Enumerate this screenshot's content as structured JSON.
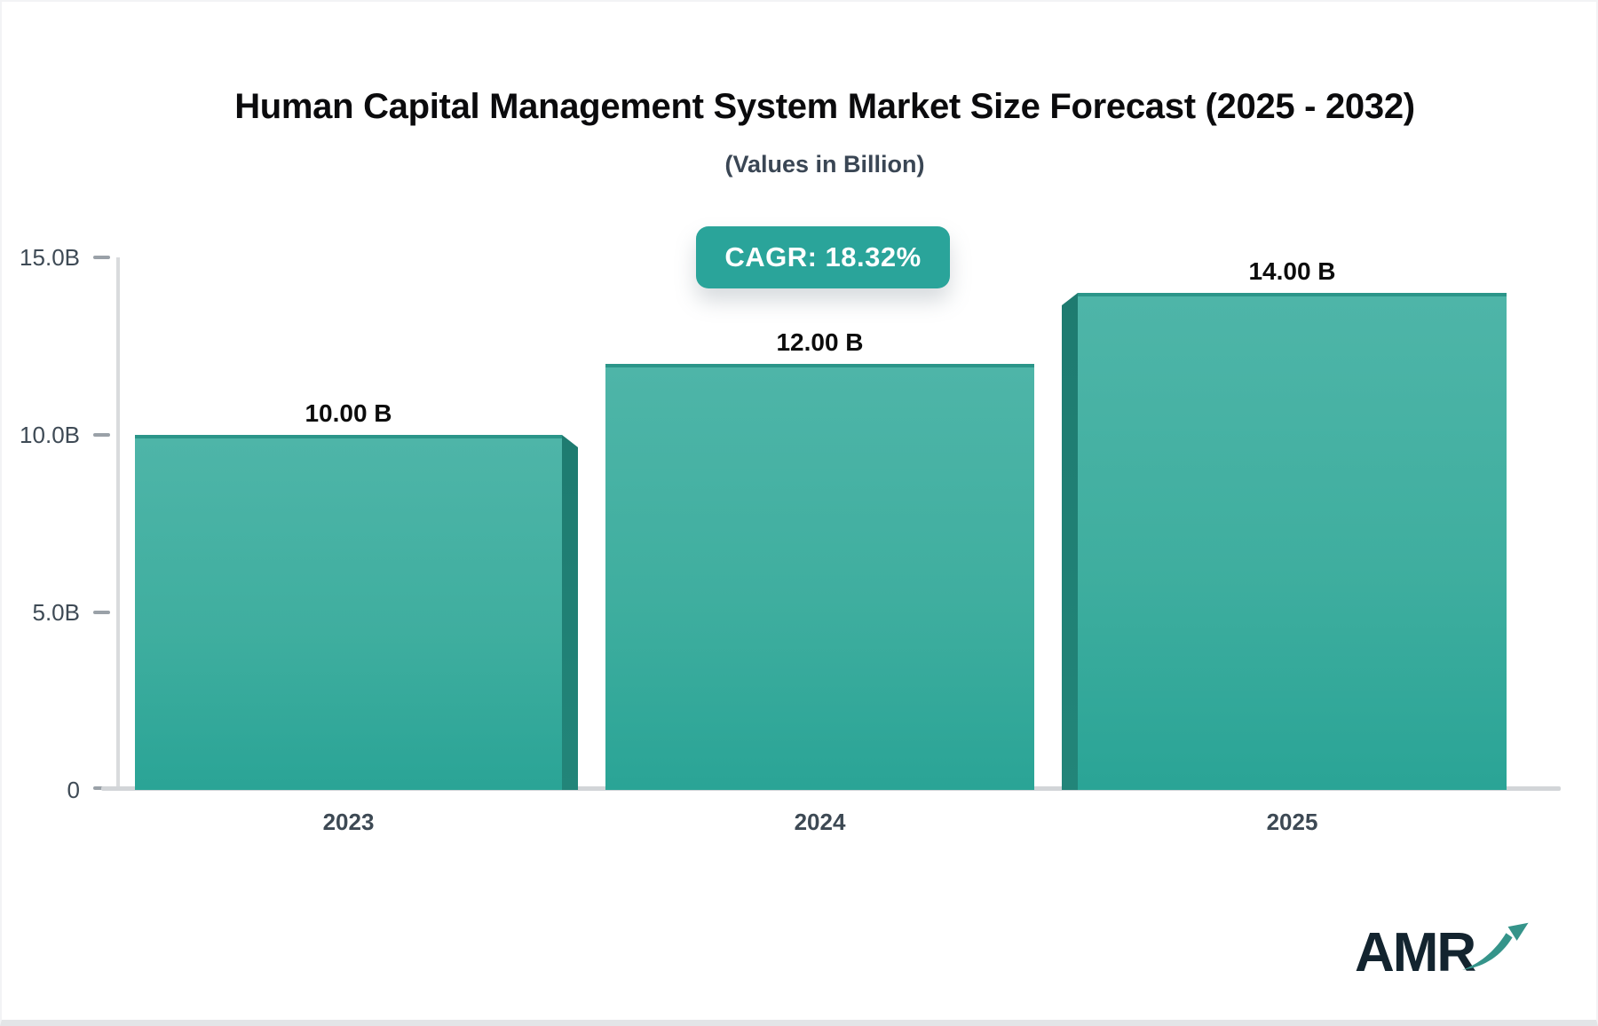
{
  "header": {
    "title": "Human Capital Management System Market Size Forecast (2025 - 2032)",
    "subtitle": "(Values in Billion)",
    "cagr_label": "CAGR: 18.32%"
  },
  "chart_data": {
    "type": "bar",
    "title": "Human Capital Management System Market Size Forecast (2025 - 2032)",
    "subtitle": "(Values in Billion)",
    "cagr_percent": 18.32,
    "unit": "Billion",
    "categories": [
      "2023",
      "2024",
      "2025"
    ],
    "values": [
      10,
      12,
      14
    ],
    "value_labels": [
      "10.00 B",
      "12.00 B",
      "14.00 B"
    ],
    "ylim": [
      0,
      15
    ],
    "ytick_labels": [
      "15.0B",
      "10.0B",
      "5.0B",
      "0"
    ],
    "ytick_values": [
      15,
      10,
      5,
      0
    ],
    "grid": false,
    "legend": false,
    "bar_style": "3d-gradient-teal"
  },
  "logo": {
    "text": "AMR"
  },
  "colors": {
    "accent_teal": "#2aa49a",
    "bar_top": "#4eb5a8",
    "bar_bottom": "#2aa496",
    "bar_side": "#1e7b70",
    "bar_top_edge": "#2b9589",
    "axis_text": "#3e4a55",
    "axis_line": "#d9dbdd",
    "title_text": "#0b0b0d",
    "subtitle_text": "#3a4654",
    "logo_text": "#13242f",
    "logo_arrow": "#35948a"
  }
}
